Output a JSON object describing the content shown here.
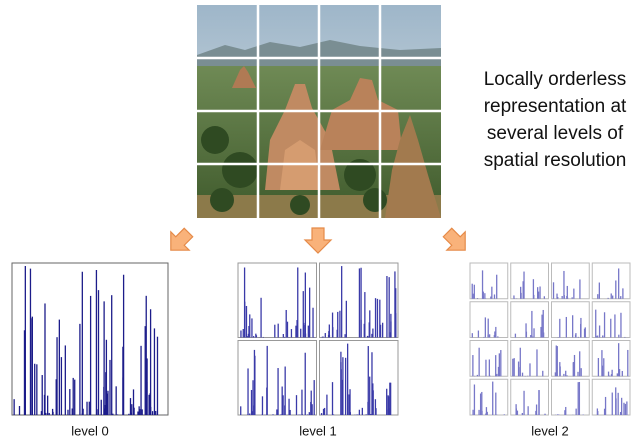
{
  "description": {
    "lines": [
      "Locally orderless",
      "representation at",
      "several levels of",
      "spatial resolution"
    ]
  },
  "levels": [
    {
      "label": "level 0"
    },
    {
      "label": "level 1"
    },
    {
      "label": "level 2"
    }
  ]
}
